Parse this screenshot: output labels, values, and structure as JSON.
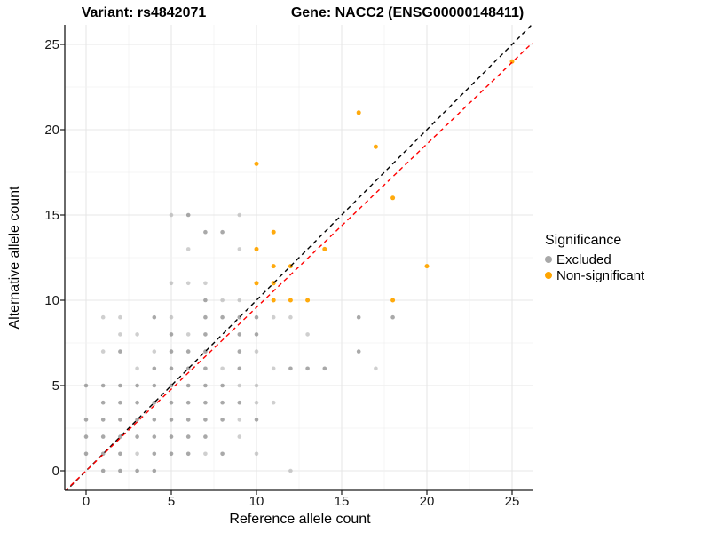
{
  "header": {
    "variant_title": "Variant: rs4842071",
    "gene_title": "Gene: NACC2 (ENSG00000148411)"
  },
  "axes": {
    "x_label": "Reference allele count",
    "y_label": "Alternative allele count",
    "x_ticks": [
      "0",
      "5",
      "10",
      "15",
      "20",
      "25"
    ],
    "y_ticks": [
      "0",
      "5",
      "10",
      "15",
      "20",
      "25"
    ]
  },
  "legend": {
    "title": "Significance",
    "items": [
      {
        "label": "Excluded",
        "color": "#A8A8A8"
      },
      {
        "label": "Non-significant",
        "color": "#FFA500"
      }
    ]
  },
  "colors": {
    "excluded_point": "#808080",
    "nonsignificant_point": "#FFA500",
    "identity_line": "#000000",
    "regression_line": "#FF0000",
    "grid_major": "#e7e7e7",
    "grid_minor": "#f2f2f2",
    "axis": "#1a1a1a"
  },
  "chart_data": {
    "type": "scatter",
    "xlabel": "Reference allele count",
    "ylabel": "Alternative allele count",
    "xlim": [
      -1.25,
      26.2
    ],
    "ylim": [
      -1.15,
      26.2
    ],
    "x_breaks": [
      0,
      5,
      10,
      15,
      20,
      25
    ],
    "y_breaks": [
      0,
      5,
      10,
      15,
      20,
      25
    ],
    "grid": "major and minor gridlines, white background, axis lines left+bottom only",
    "legend_position": "right",
    "series": [
      {
        "name": "Excluded",
        "color": "#808080",
        "note": "points are [x, y, shade] where shade 1 = darker, 0 = fainter (alpha)",
        "points": [
          [
            1,
            0,
            1
          ],
          [
            2,
            0,
            1
          ],
          [
            3,
            0,
            1
          ],
          [
            4,
            0,
            1
          ],
          [
            12,
            0,
            0
          ],
          [
            0,
            1,
            1
          ],
          [
            1,
            1,
            1
          ],
          [
            2,
            1,
            1
          ],
          [
            3,
            1,
            0
          ],
          [
            4,
            1,
            1
          ],
          [
            5,
            1,
            1
          ],
          [
            6,
            1,
            1
          ],
          [
            7,
            1,
            0
          ],
          [
            8,
            1,
            1
          ],
          [
            10,
            1,
            0
          ],
          [
            0,
            2,
            1
          ],
          [
            1,
            2,
            1
          ],
          [
            2,
            2,
            1
          ],
          [
            3,
            2,
            1
          ],
          [
            4,
            2,
            1
          ],
          [
            5,
            2,
            1
          ],
          [
            6,
            2,
            1
          ],
          [
            7,
            2,
            1
          ],
          [
            9,
            2,
            0
          ],
          [
            0,
            3,
            1
          ],
          [
            1,
            3,
            1
          ],
          [
            2,
            3,
            1
          ],
          [
            3,
            3,
            1
          ],
          [
            4,
            3,
            1
          ],
          [
            5,
            3,
            1
          ],
          [
            6,
            3,
            1
          ],
          [
            7,
            3,
            1
          ],
          [
            8,
            3,
            1
          ],
          [
            9,
            3,
            0
          ],
          [
            10,
            3,
            1
          ],
          [
            1,
            4,
            1
          ],
          [
            2,
            4,
            1
          ],
          [
            3,
            4,
            1
          ],
          [
            4,
            4,
            1
          ],
          [
            5,
            4,
            1
          ],
          [
            6,
            4,
            1
          ],
          [
            7,
            4,
            1
          ],
          [
            8,
            4,
            1
          ],
          [
            9,
            4,
            1
          ],
          [
            10,
            4,
            0
          ],
          [
            11,
            4,
            0
          ],
          [
            0,
            5,
            1
          ],
          [
            1,
            5,
            1
          ],
          [
            2,
            5,
            1
          ],
          [
            3,
            5,
            1
          ],
          [
            4,
            5,
            1
          ],
          [
            5,
            5,
            1
          ],
          [
            6,
            5,
            1
          ],
          [
            7,
            5,
            1
          ],
          [
            8,
            5,
            1
          ],
          [
            9,
            5,
            0
          ],
          [
            10,
            5,
            0
          ],
          [
            3,
            6,
            0
          ],
          [
            4,
            6,
            1
          ],
          [
            5,
            6,
            1
          ],
          [
            6,
            6,
            1
          ],
          [
            7,
            6,
            1
          ],
          [
            8,
            6,
            0
          ],
          [
            9,
            6,
            1
          ],
          [
            11,
            6,
            0
          ],
          [
            12,
            6,
            1
          ],
          [
            13,
            6,
            1
          ],
          [
            14,
            6,
            1
          ],
          [
            17,
            6,
            0
          ],
          [
            1,
            7,
            0
          ],
          [
            2,
            7,
            1
          ],
          [
            4,
            7,
            0
          ],
          [
            5,
            7,
            1
          ],
          [
            6,
            7,
            1
          ],
          [
            7,
            7,
            1
          ],
          [
            9,
            7,
            1
          ],
          [
            10,
            7,
            0
          ],
          [
            16,
            7,
            1
          ],
          [
            2,
            8,
            0
          ],
          [
            3,
            8,
            0
          ],
          [
            5,
            8,
            1
          ],
          [
            6,
            8,
            0
          ],
          [
            7,
            8,
            1
          ],
          [
            9,
            8,
            1
          ],
          [
            10,
            8,
            1
          ],
          [
            13,
            8,
            0
          ],
          [
            1,
            9,
            0
          ],
          [
            2,
            9,
            0
          ],
          [
            4,
            9,
            1
          ],
          [
            5,
            9,
            0
          ],
          [
            7,
            9,
            1
          ],
          [
            8,
            9,
            1
          ],
          [
            9,
            9,
            1
          ],
          [
            10,
            9,
            1
          ],
          [
            11,
            9,
            0
          ],
          [
            12,
            9,
            0
          ],
          [
            16,
            9,
            1
          ],
          [
            18,
            9,
            1
          ],
          [
            7,
            10,
            1
          ],
          [
            8,
            10,
            0
          ],
          [
            9,
            10,
            0
          ],
          [
            5,
            11,
            0
          ],
          [
            6,
            11,
            0
          ],
          [
            7,
            11,
            0
          ],
          [
            6,
            13,
            0
          ],
          [
            9,
            13,
            0
          ],
          [
            7,
            14,
            1
          ],
          [
            8,
            14,
            1
          ],
          [
            5,
            15,
            0
          ],
          [
            6,
            15,
            1
          ],
          [
            9,
            15,
            0
          ]
        ]
      },
      {
        "name": "Non-significant",
        "color": "#FFA500",
        "points": [
          [
            11,
            10
          ],
          [
            12,
            10
          ],
          [
            13,
            10
          ],
          [
            18,
            10
          ],
          [
            10,
            11
          ],
          [
            11,
            11
          ],
          [
            11,
            12
          ],
          [
            12,
            12
          ],
          [
            20,
            12
          ],
          [
            10,
            13
          ],
          [
            14,
            13
          ],
          [
            11,
            14
          ],
          [
            18,
            16
          ],
          [
            10,
            18
          ],
          [
            17,
            19
          ],
          [
            16,
            21
          ],
          [
            25,
            24
          ]
        ]
      }
    ],
    "lines": [
      {
        "name": "identity",
        "style": "dashed",
        "color": "#000000",
        "slope": 1.0,
        "intercept": 0
      },
      {
        "name": "regression",
        "style": "dashed",
        "color": "#FF0000",
        "slope": 0.958,
        "intercept": 0
      }
    ]
  }
}
